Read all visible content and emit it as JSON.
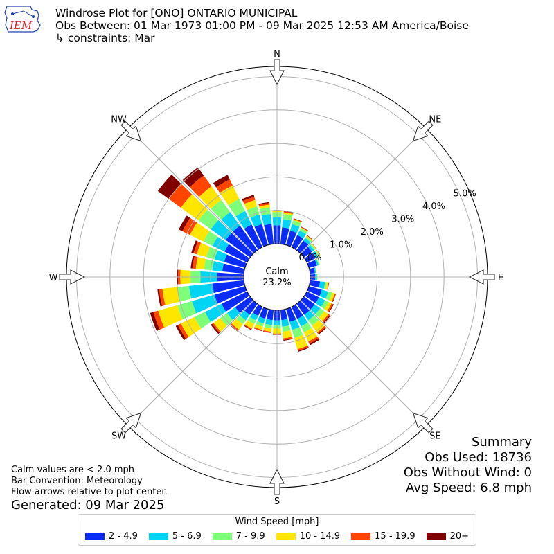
{
  "header": {
    "logo_text": "IEM",
    "title": "Windrose Plot for [ONO] ONTARIO MUNICIPAL",
    "subtitle": "Obs Between: 01 Mar 1973 01:00 PM - 09 Mar 2025 12:53 AM America/Boise",
    "constraints": "↳ constraints: Mar"
  },
  "summary": {
    "title": "Summary",
    "obs_used": "Obs Used: 18736",
    "obs_without_wind": "Obs Without Wind: 0",
    "avg_speed": "Avg Speed: 6.8 mph"
  },
  "notes": {
    "calm_note": "Calm values are < 2.0 mph",
    "bar_convention": "Bar Convention: Meteorology",
    "flow_arrows": "Flow arrows relative to plot center.",
    "generated": "Generated: 09 Mar 2025"
  },
  "chart_data": {
    "type": "windrose",
    "calm_label": "Calm",
    "calm_value": "23.2%",
    "radial_ticks": [
      "0.0%",
      "1.0%",
      "2.0%",
      "3.0%",
      "4.0%",
      "5.0%"
    ],
    "radial_tick_values": [
      0,
      1,
      2,
      3,
      4,
      5
    ],
    "rmax": 5.3,
    "compass_labels": [
      "N",
      "NE",
      "E",
      "SE",
      "S",
      "SW",
      "W",
      "NW"
    ],
    "direction_count": 36,
    "directions_deg": [
      0,
      10,
      20,
      30,
      40,
      50,
      60,
      70,
      80,
      90,
      100,
      110,
      120,
      130,
      140,
      150,
      160,
      170,
      180,
      190,
      200,
      210,
      220,
      230,
      240,
      250,
      260,
      270,
      280,
      290,
      300,
      310,
      320,
      330,
      340,
      350
    ],
    "legend_title": "Wind Speed [mph]",
    "bins": [
      "2 - 4.9",
      "5 - 6.9",
      "7 - 9.9",
      "10 - 14.9",
      "15 - 19.9",
      "20+"
    ],
    "colors": [
      "#0a2cf6",
      "#00d4f5",
      "#7dff7a",
      "#ffe600",
      "#ff4500",
      "#800000"
    ],
    "speed_bin_percent": [
      [
        0.55,
        0.25,
        0.15,
        0.03,
        0.02,
        0.01
      ],
      [
        0.5,
        0.25,
        0.15,
        0.05,
        0.03,
        0.01
      ],
      [
        0.45,
        0.2,
        0.12,
        0.03,
        0.02,
        0.01
      ],
      [
        0.4,
        0.15,
        0.08,
        0.02,
        0.02,
        0.01
      ],
      [
        0.35,
        0.1,
        0.05,
        0.03,
        0.01,
        0.01
      ],
      [
        0.3,
        0.08,
        0.05,
        0.02,
        0.01,
        0.0
      ],
      [
        0.3,
        0.08,
        0.04,
        0.02,
        0.01,
        0.0
      ],
      [
        0.25,
        0.05,
        0.03,
        0.01,
        0.0,
        0.0
      ],
      [
        0.15,
        0.03,
        0.01,
        0.01,
        0.0,
        0.0
      ],
      [
        0.15,
        0.05,
        0.01,
        0.01,
        0.0,
        0.0
      ],
      [
        0.3,
        0.15,
        0.05,
        0.05,
        0.01,
        0.01
      ],
      [
        0.4,
        0.2,
        0.12,
        0.08,
        0.03,
        0.01
      ],
      [
        0.4,
        0.2,
        0.12,
        0.1,
        0.05,
        0.02
      ],
      [
        0.4,
        0.2,
        0.15,
        0.15,
        0.05,
        0.03
      ],
      [
        0.4,
        0.2,
        0.2,
        0.25,
        0.05,
        0.03
      ],
      [
        0.4,
        0.25,
        0.2,
        0.3,
        0.07,
        0.05
      ],
      [
        0.4,
        0.25,
        0.25,
        0.35,
        0.05,
        0.03
      ],
      [
        0.3,
        0.2,
        0.15,
        0.2,
        0.05,
        0.02
      ],
      [
        0.3,
        0.15,
        0.1,
        0.15,
        0.03,
        0.01
      ],
      [
        0.3,
        0.15,
        0.1,
        0.1,
        0.03,
        0.01
      ],
      [
        0.3,
        0.15,
        0.1,
        0.1,
        0.03,
        0.01
      ],
      [
        0.3,
        0.15,
        0.12,
        0.15,
        0.03,
        0.02
      ],
      [
        0.4,
        0.2,
        0.15,
        0.2,
        0.04,
        0.03
      ],
      [
        0.55,
        0.3,
        0.25,
        0.25,
        0.05,
        0.05
      ],
      [
        0.85,
        0.55,
        0.35,
        0.45,
        0.1,
        0.07
      ],
      [
        0.95,
        0.7,
        0.45,
        0.6,
        0.15,
        0.1
      ],
      [
        0.95,
        0.7,
        0.35,
        0.45,
        0.1,
        0.05
      ],
      [
        0.8,
        0.5,
        0.3,
        0.3,
        0.07,
        0.04
      ],
      [
        0.65,
        0.3,
        0.25,
        0.25,
        0.1,
        0.05
      ],
      [
        0.65,
        0.3,
        0.25,
        0.3,
        0.1,
        0.07
      ],
      [
        0.75,
        0.4,
        0.3,
        0.45,
        0.25,
        0.12
      ],
      [
        0.9,
        0.55,
        0.45,
        0.65,
        0.45,
        0.4
      ],
      [
        0.9,
        0.5,
        0.45,
        0.5,
        0.4,
        0.3
      ],
      [
        0.75,
        0.45,
        0.4,
        0.45,
        0.2,
        0.15
      ],
      [
        0.65,
        0.3,
        0.25,
        0.2,
        0.1,
        0.06
      ],
      [
        0.6,
        0.3,
        0.2,
        0.08,
        0.05,
        0.03
      ]
    ]
  }
}
